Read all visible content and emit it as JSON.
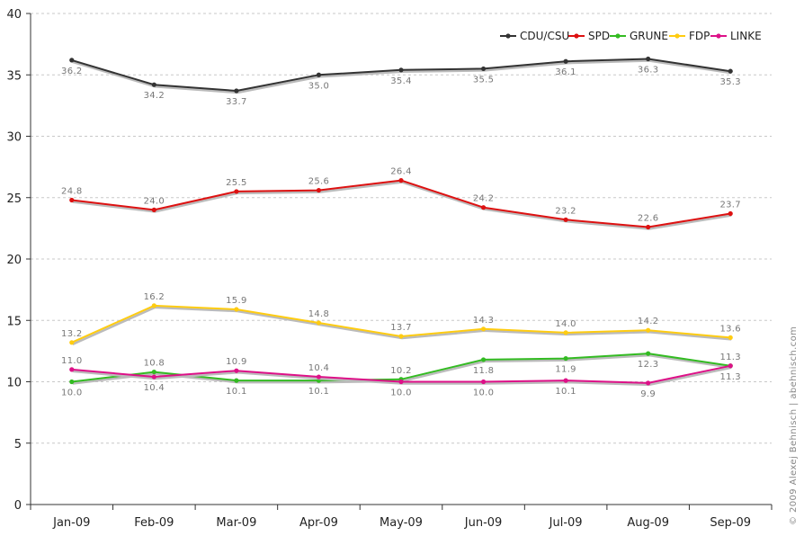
{
  "chart_data": {
    "type": "line",
    "categories": [
      "Jan-09",
      "Feb-09",
      "Mar-09",
      "Apr-09",
      "May-09",
      "Jun-09",
      "Jul-09",
      "Aug-09",
      "Sep-09"
    ],
    "ylim": [
      0,
      40
    ],
    "yticks": [
      0,
      5,
      10,
      15,
      20,
      25,
      30,
      35,
      40
    ],
    "grid": "horizontal dashed",
    "legend_position": "top-right",
    "credit": "© 2009 Alexej Behnisch | abehnisch.com",
    "series": [
      {
        "name": "CDU/CSU",
        "color": "#333333",
        "values": [
          36.2,
          34.2,
          33.7,
          35.0,
          35.4,
          35.5,
          36.1,
          36.3,
          35.3
        ],
        "labels": [
          "36.2",
          "34.2",
          "33.7",
          "35.0",
          "35.4",
          "35.5",
          "36.1",
          "36.3",
          "35.3"
        ]
      },
      {
        "name": "SPD",
        "color": "#dd1111",
        "values": [
          24.8,
          24.0,
          25.5,
          25.6,
          26.4,
          24.2,
          23.2,
          22.6,
          23.7
        ],
        "labels": [
          "24.8",
          "24.0",
          "25.5",
          "25.6",
          "26.4",
          "24.2",
          "23.2",
          "22.6",
          "23.7"
        ]
      },
      {
        "name": "GRUNE",
        "color": "#33bb22",
        "values": [
          10.0,
          10.8,
          10.1,
          10.1,
          10.2,
          11.8,
          11.9,
          12.3,
          11.3
        ],
        "labels": [
          "10.0",
          "10.8",
          "10.1",
          "10.1",
          "10.2",
          "11.8",
          "11.9",
          "12.3",
          "11.3"
        ]
      },
      {
        "name": "FDP",
        "color": "#ffcc11",
        "values": [
          13.2,
          16.2,
          15.9,
          14.8,
          13.7,
          14.3,
          14.0,
          14.2,
          13.6
        ],
        "labels": [
          "13.2",
          "16.2",
          "15.9",
          "14.8",
          "13.7",
          "14.3",
          "14.0",
          "14.2",
          "13.6"
        ]
      },
      {
        "name": "LINKE",
        "color": "#dd1188",
        "values": [
          11.0,
          10.4,
          10.9,
          10.4,
          10.0,
          10.0,
          10.1,
          9.9,
          11.3
        ],
        "labels": [
          "11.0",
          "10.4",
          "10.9",
          "10.4",
          "10.0",
          "10.0",
          "10.1",
          "9.9",
          "11.3"
        ]
      }
    ]
  }
}
